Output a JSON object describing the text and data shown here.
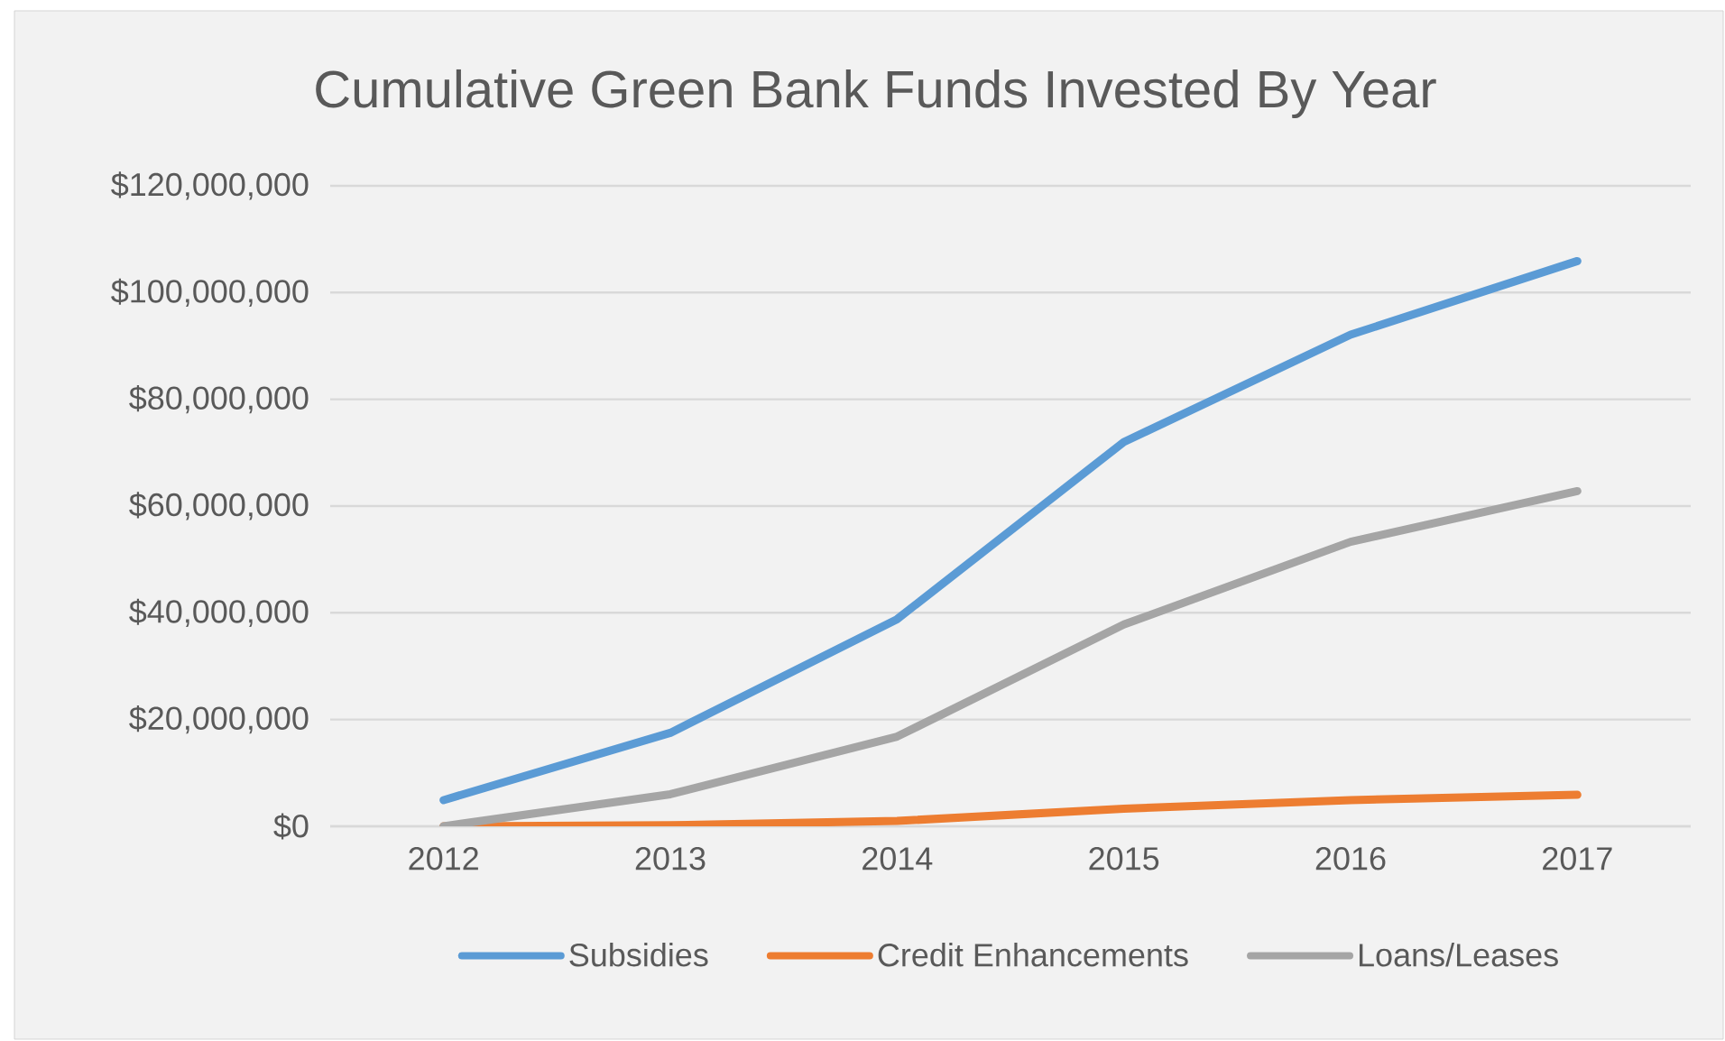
{
  "chart_data": {
    "type": "line",
    "title": "Cumulative Green Bank Funds Invested By Year",
    "categories": [
      "2012",
      "2013",
      "2014",
      "2015",
      "2016",
      "2017"
    ],
    "series": [
      {
        "name": "Subsidies",
        "color": "#5b9bd5",
        "values": [
          4900000,
          17500000,
          38800000,
          72000000,
          92100000,
          105900000
        ]
      },
      {
        "name": "Credit Enhancements",
        "color": "#ed7d31",
        "values": [
          0,
          200000,
          1000000,
          3300000,
          4900000,
          5900000
        ]
      },
      {
        "name": "Loans/Leases",
        "color": "#a5a5a5",
        "values": [
          0,
          6000000,
          16800000,
          37800000,
          53300000,
          62800000
        ]
      }
    ],
    "ylim": [
      0,
      120000000
    ],
    "yticks": [
      {
        "value": 0,
        "label": "$0"
      },
      {
        "value": 20000000,
        "label": "$20,000,000"
      },
      {
        "value": 40000000,
        "label": "$40,000,000"
      },
      {
        "value": 60000000,
        "label": "$60,000,000"
      },
      {
        "value": 80000000,
        "label": "$80,000,000"
      },
      {
        "value": 100000000,
        "label": "$100,000,000"
      },
      {
        "value": 120000000,
        "label": "$120,000,000"
      }
    ],
    "grid": "y",
    "legend": "bottom",
    "marker": "none",
    "line_style": "solid"
  }
}
